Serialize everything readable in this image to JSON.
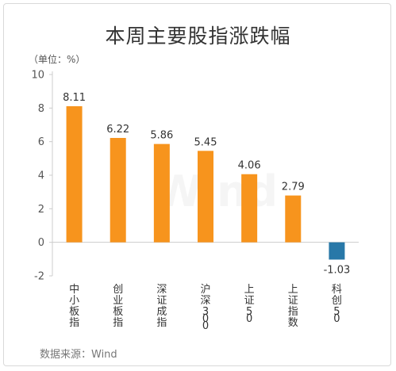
{
  "title": "本周主要股指涨跌幅",
  "unit_label": "（单位：%）",
  "source": "数据来源：Wind",
  "watermark": "Wind",
  "colors": {
    "positive": "#f7941d",
    "negative": "#2878a8",
    "axis": "#cccccc",
    "tick_text": "#555555",
    "label_text": "#333333"
  },
  "chart_data": {
    "type": "bar",
    "title": "本周主要股指涨跌幅",
    "ylabel": "（单位：%）",
    "xlabel": "",
    "ylim": [
      -2,
      10
    ],
    "yticks": [
      -2,
      0,
      2,
      4,
      6,
      8,
      10
    ],
    "grid": false,
    "categories": [
      "中小板指",
      "创业板指",
      "深证成指",
      "沪深300",
      "上证50",
      "上证指数",
      "科创50"
    ],
    "values": [
      8.11,
      6.22,
      5.86,
      5.45,
      4.06,
      2.79,
      -1.03
    ],
    "value_labels": [
      "8.11",
      "6.22",
      "5.86",
      "5.45",
      "4.06",
      "2.79",
      "-1.03"
    ]
  }
}
